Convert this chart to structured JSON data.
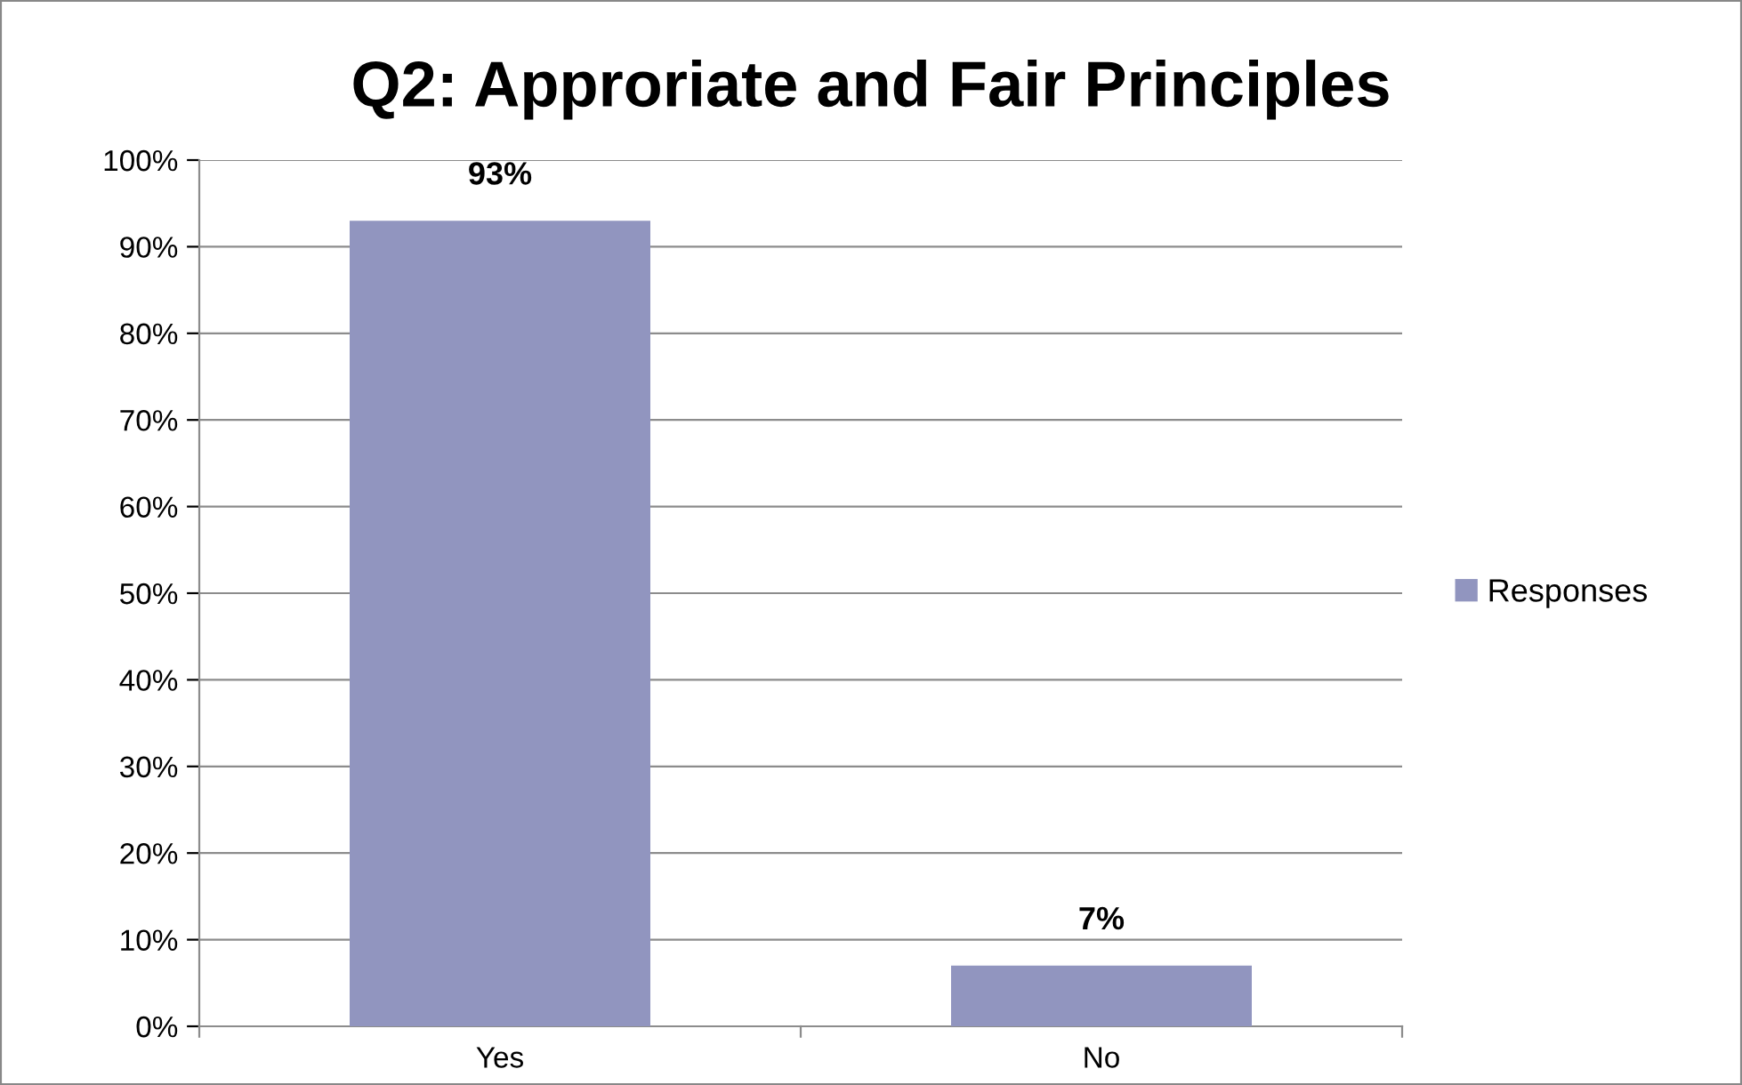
{
  "chart_data": {
    "type": "bar",
    "title": "Q2: Approriate and Fair Principles",
    "categories": [
      "Yes",
      "No"
    ],
    "series": [
      {
        "name": "Responses",
        "color": "#9195bf",
        "values": [
          93,
          7
        ]
      }
    ],
    "ylim": [
      0,
      100
    ],
    "yticks": [
      {
        "value": 0,
        "label": "0%"
      },
      {
        "value": 10,
        "label": "10%"
      },
      {
        "value": 20,
        "label": "20%"
      },
      {
        "value": 30,
        "label": "30%"
      },
      {
        "value": 40,
        "label": "40%"
      },
      {
        "value": 50,
        "label": "50%"
      },
      {
        "value": 60,
        "label": "60%"
      },
      {
        "value": 70,
        "label": "70%"
      },
      {
        "value": 80,
        "label": "80%"
      },
      {
        "value": 90,
        "label": "90%"
      },
      {
        "value": 100,
        "label": "100%"
      }
    ],
    "value_labels": [
      "93%",
      "7%"
    ],
    "grid": "y",
    "legend": "right"
  }
}
